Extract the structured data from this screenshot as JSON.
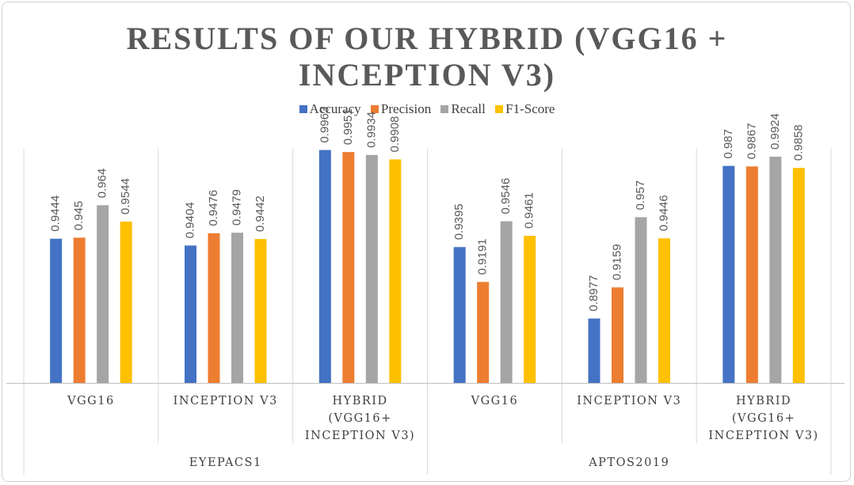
{
  "chart_data": {
    "type": "bar",
    "title": "RESULTS OF OUR HYBRID (VGG16 + INCEPTION V3)",
    "title_lines": [
      "RESULTS OF OUR HYBRID (VGG16 +",
      "INCEPTION V3)"
    ],
    "legend_position": "top",
    "grid": false,
    "ylim": [
      0.86,
      1.0
    ],
    "groups": [
      {
        "name": "EYEPACS1",
        "categories": [
          "VGG16",
          "INCEPTION V3",
          "HYBRID (VGG16+ INCEPTION V3)"
        ]
      },
      {
        "name": "APTOS2019",
        "categories": [
          "VGG16",
          "INCEPTION V3",
          "HYBRID (VGG16+ INCEPTION V3)"
        ]
      }
    ],
    "category_label_lines": [
      [
        "VGG16"
      ],
      [
        "INCEPTION V3"
      ],
      [
        "HYBRID",
        "(VGG16+",
        "INCEPTION V3)"
      ],
      [
        "VGG16"
      ],
      [
        "INCEPTION V3"
      ],
      [
        "HYBRID",
        "(VGG16+",
        "INCEPTION V3)"
      ]
    ],
    "series": [
      {
        "name": "Accuracy",
        "color": "#4472C4",
        "values": [
          0.9444,
          0.9404,
          0.9963,
          0.9395,
          0.8977,
          0.987
        ]
      },
      {
        "name": "Precision",
        "color": "#ED7D31",
        "values": [
          0.945,
          0.9476,
          0.9951,
          0.9191,
          0.9159,
          0.9867
        ]
      },
      {
        "name": "Recall",
        "color": "#A5A5A5",
        "values": [
          0.964,
          0.9479,
          0.9934,
          0.9546,
          0.957,
          0.9924
        ]
      },
      {
        "name": "F1-Score",
        "color": "#FFC000",
        "values": [
          0.9544,
          0.9442,
          0.9908,
          0.9461,
          0.9446,
          0.9858
        ]
      }
    ],
    "value_labels": [
      [
        "0.9444",
        "0.9404",
        "0.9963",
        "0.9395",
        "0.8977",
        "0.987"
      ],
      [
        "0.945",
        "0.9476",
        "0.9951",
        "0.9191",
        "0.9159",
        "0.9867"
      ],
      [
        "0.964",
        "0.9479",
        "0.9934",
        "0.9546",
        "0.957",
        "0.9924"
      ],
      [
        "0.9544",
        "0.9442",
        "0.9908",
        "0.9461",
        "0.9446",
        "0.9858"
      ]
    ]
  }
}
